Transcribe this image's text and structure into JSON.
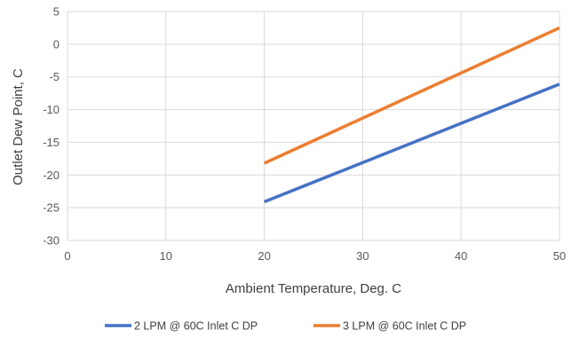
{
  "chart_data": {
    "type": "line",
    "xlabel": "Ambient Temperature, Deg. C",
    "ylabel": "Outlet Dew Point, C",
    "xlim": [
      0,
      50
    ],
    "ylim": [
      -30,
      5
    ],
    "xticks": [
      0,
      10,
      20,
      30,
      40,
      50
    ],
    "yticks": [
      5,
      0,
      -5,
      -10,
      -15,
      -20,
      -25,
      -30
    ],
    "grid": true,
    "legend_position": "bottom",
    "series": [
      {
        "name": "2 LPM @ 60C Inlet C DP",
        "color": "#4472C4",
        "x": [
          20,
          50
        ],
        "y": [
          -24.1,
          -6.1
        ]
      },
      {
        "name": "3 LPM @ 60C Inlet C DP",
        "color": "#ED7D31",
        "x": [
          20,
          50
        ],
        "y": [
          -18.2,
          2.5
        ]
      }
    ]
  }
}
